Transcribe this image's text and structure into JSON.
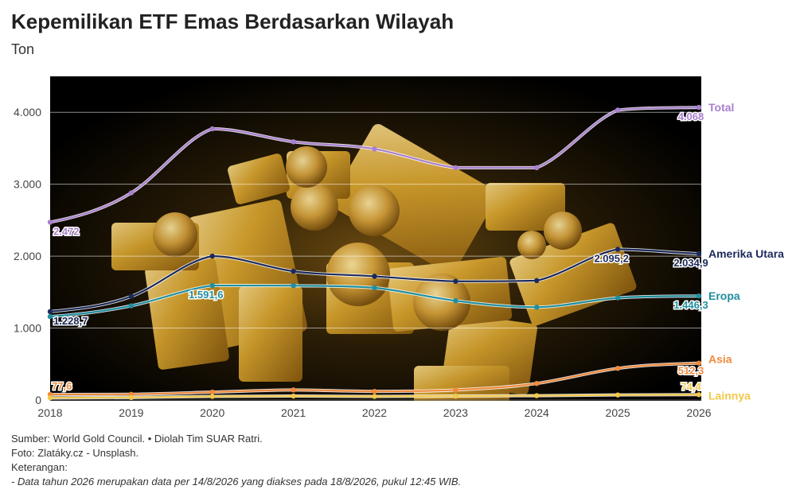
{
  "title": "Kepemilikan ETF Emas Berdasarkan Wilayah",
  "subtitle": "Ton",
  "chart_data": {
    "type": "line",
    "x": [
      2018,
      2019,
      2020,
      2021,
      2022,
      2023,
      2024,
      2025,
      2026
    ],
    "ylim": [
      0,
      4500
    ],
    "yticks": [
      0,
      1000,
      2000,
      3000,
      4000
    ],
    "ytick_labels": [
      "0",
      "1.000",
      "2.000",
      "3.000",
      "4.000"
    ],
    "grid": true,
    "series": [
      {
        "name": "Total",
        "color": "#a97fd0",
        "values": [
          2472,
          2880,
          3770,
          3590,
          3490,
          3230,
          3230,
          4030,
          4068
        ],
        "first_label": "2.472",
        "last_label": "4.068"
      },
      {
        "name": "Amerika Utara",
        "color": "#1c2a5a",
        "values": [
          1228.7,
          1440,
          2000,
          1790,
          1720,
          1650,
          1660,
          2095.2,
          2034.9
        ],
        "first_label": "1.228,7",
        "extra_label_index": 7,
        "extra_label": "2.095,2",
        "last_label": "2.034,9"
      },
      {
        "name": "Eropa",
        "color": "#1f8fa0",
        "values": [
          1160,
          1310,
          1591.6,
          1590,
          1560,
          1380,
          1290,
          1420,
          1446.3
        ],
        "extra_label_index": 2,
        "extra_label": "1.591,6",
        "last_label": "1.446,3"
      },
      {
        "name": "Asia",
        "color": "#f08a3c",
        "values": [
          77.6,
          80,
          110,
          140,
          120,
          140,
          230,
          440,
          512.3
        ],
        "first_label": "77,6",
        "last_label": "512,3"
      },
      {
        "name": "Lainnya",
        "color": "#f2c84b",
        "values": [
          30,
          35,
          50,
          55,
          50,
          55,
          60,
          70,
          74.4
        ],
        "last_label": "74,4"
      }
    ]
  },
  "footer": {
    "source": "Sumber: World Gold Council. • Diolah Tim SUAR Ratri.",
    "photo": "Foto: Zlatáky.cz - Unsplash.",
    "notes_heading": "Keterangan:",
    "note": "- Data tahun 2026 merupakan data per 14/8/2026 yang diakses pada 18/8/2026, pukul 12:45 WIB."
  }
}
